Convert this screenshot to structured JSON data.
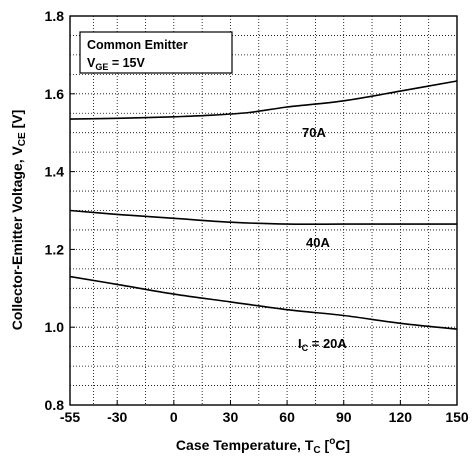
{
  "chart_data": {
    "type": "line",
    "legend_box": {
      "line1": "Common Emitter",
      "line2_main": "V",
      "line2_sub": "GE",
      "line2_rest": " = 15V"
    },
    "xlabel": {
      "main": "Case Temperature, T",
      "sub": "C",
      "rest_open": " [",
      "sup": "o",
      "rest_close": "C]"
    },
    "ylabel": {
      "main": "Collector-Emitter Voltage, V",
      "sub": "CE",
      "rest": " [V]"
    },
    "xlim": [
      -55,
      150
    ],
    "ylim": [
      0.8,
      1.8
    ],
    "xticks": [
      -55,
      -30,
      0,
      30,
      60,
      90,
      120,
      150
    ],
    "xtick_labels": [
      "-55",
      "-30",
      "0",
      "30",
      "60",
      "90",
      "120",
      "150"
    ],
    "yticks": [
      0.8,
      1.0,
      1.2,
      1.4,
      1.6,
      1.8
    ],
    "ytick_labels": [
      "0.8",
      "1.0",
      "1.2",
      "1.4",
      "1.6",
      "1.8"
    ],
    "grid": true,
    "series": [
      {
        "name": "70A",
        "label_main": "70A",
        "color": "#000000",
        "x": [
          -55,
          -30,
          0,
          20,
          40,
          60,
          90,
          120,
          150
        ],
        "y": [
          1.535,
          1.537,
          1.541,
          1.545,
          1.552,
          1.566,
          1.582,
          1.607,
          1.633
        ]
      },
      {
        "name": "40A",
        "label_main": "40A",
        "color": "#000000",
        "x": [
          -55,
          -30,
          0,
          30,
          60,
          90,
          120,
          150
        ],
        "y": [
          1.3,
          1.29,
          1.28,
          1.27,
          1.265,
          1.265,
          1.265,
          1.265
        ]
      },
      {
        "name": "IC = 20A",
        "label_main": "I",
        "label_sub": "C",
        "label_rest": " = 20A",
        "color": "#000000",
        "x": [
          -55,
          -30,
          0,
          30,
          60,
          90,
          120,
          150
        ],
        "y": [
          1.13,
          1.11,
          1.085,
          1.065,
          1.045,
          1.03,
          1.01,
          0.995
        ]
      }
    ]
  }
}
